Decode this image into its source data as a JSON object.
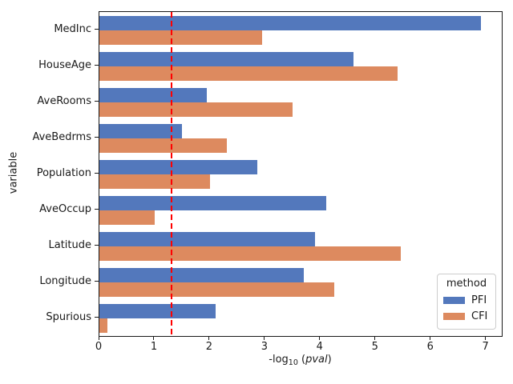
{
  "figure": {
    "background": "#ffffff",
    "text_color": "#1a1a1a",
    "spine_color": "#1a1a1a"
  },
  "chart_data": {
    "type": "bar",
    "orientation": "horizontal",
    "xlabel": "-log10 (pval)",
    "xlabel_parts": {
      "pre": "-log",
      "sub": "10",
      "mid": " (",
      "var": "pval",
      "post": ")"
    },
    "ylabel": "variable",
    "categories": [
      "MedInc",
      "HouseAge",
      "AveRooms",
      "AveBedrms",
      "Population",
      "AveOccup",
      "Latitude",
      "Longitude",
      "Spurious"
    ],
    "series": [
      {
        "name": "PFI",
        "color": "#5378bc",
        "values": [
          6.9,
          4.6,
          1.95,
          1.5,
          2.85,
          4.1,
          3.9,
          3.7,
          2.1
        ]
      },
      {
        "name": "CFI",
        "color": "#dd8a5f",
        "values": [
          2.95,
          5.4,
          3.5,
          2.3,
          2.0,
          1.0,
          5.45,
          4.25,
          0.15
        ]
      }
    ],
    "xlim": [
      0,
      7.28
    ],
    "xticks": [
      "0",
      "1",
      "2",
      "3",
      "4",
      "5",
      "6",
      "7"
    ],
    "grid": false,
    "legend_position": "lower-right",
    "reference_line": {
      "value": 1.3,
      "color": "#ff0000",
      "style": "dashed"
    },
    "legend": {
      "title": "method",
      "entries": [
        "PFI",
        "CFI"
      ]
    }
  }
}
